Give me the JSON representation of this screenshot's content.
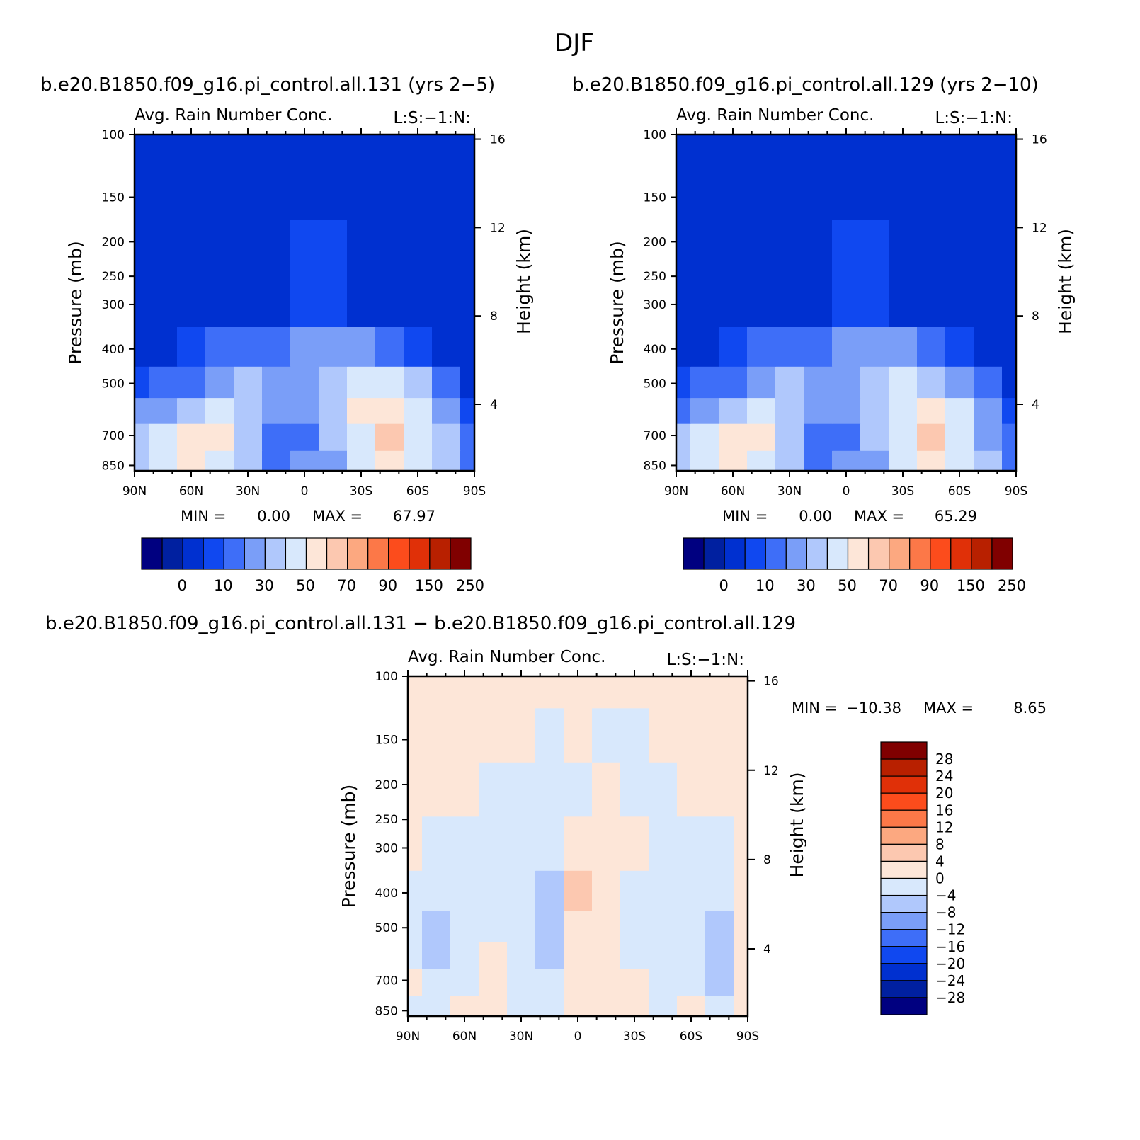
{
  "figure": {
    "title": "DJF",
    "left_case": "b.e20.B1850.f09_g16.pi_control.all.131 (yrs 2−5)",
    "right_case": "b.e20.B1850.f09_g16.pi_control.all.129 (yrs 2−10)",
    "diff_case": "b.e20.B1850.f09_g16.pi_control.all.131 − b.e20.B1850.f09_g16.pi_control.all.129"
  },
  "panel_common": {
    "title": "Avg. Rain Number Conc.",
    "subtitle": "L:S:−1:N:",
    "ylabel": "Pressure (mb)",
    "y2label": "Height (km)",
    "pressure_ticks": [
      "100",
      "150",
      "200",
      "250",
      "300",
      "400",
      "500",
      "700",
      "850"
    ],
    "height_ticks": [
      "16",
      "12",
      "8",
      "4"
    ],
    "lat_ticks": [
      "90N",
      "60N",
      "30N",
      "0",
      "30S",
      "60S",
      "90S"
    ]
  },
  "colors": {
    "field_levels": [
      "#000080",
      "#0020a0",
      "#0030d0",
      "#1048f0",
      "#3e6ef8",
      "#7a9ef8",
      "#b0c8fc",
      "#d8e8fc",
      "#fde6d8",
      "#fcc8b0",
      "#fca880",
      "#fc7848",
      "#fc4c1c",
      "#e03008",
      "#b82000",
      "#800000"
    ],
    "diff_levels": [
      "#000080",
      "#0020a0",
      "#0030d0",
      "#1048f0",
      "#3e6ef8",
      "#7a9ef8",
      "#b0c8fc",
      "#d8e8fc",
      "#fde6d8",
      "#fcc8b0",
      "#fca880",
      "#fc7848",
      "#fc4c1c",
      "#e03008",
      "#b82000",
      "#800000"
    ]
  },
  "colorbar_field": {
    "labels": [
      "0",
      "10",
      "30",
      "50",
      "70",
      "90",
      "150",
      "250"
    ]
  },
  "colorbar_diff": {
    "labels": [
      "28",
      "24",
      "20",
      "16",
      "12",
      "8",
      "4",
      "0",
      "−4",
      "−8",
      "−12",
      "−16",
      "−20",
      "−24",
      "−28"
    ]
  },
  "chart_data": [
    {
      "type": "heatmap",
      "panel": "left",
      "title": "Avg. Rain Number Conc.",
      "ylabel": "Pressure (mb)",
      "y2label": "Height (km)",
      "x": [
        -90,
        -75,
        -60,
        -45,
        -30,
        -15,
        0,
        15,
        30,
        45,
        60,
        75,
        90
      ],
      "y": [
        850,
        700,
        600,
        500,
        400,
        300,
        100
      ],
      "ylim": [
        100,
        880
      ],
      "y_scale": "log",
      "min_label": "MIN =",
      "min_value": "0.00",
      "max_label": "MAX =",
      "max_value": "67.97",
      "z": [
        [
          35,
          40,
          58,
          45,
          30,
          15,
          20,
          25,
          40,
          55,
          40,
          30,
          10
        ],
        [
          38,
          42,
          55,
          52,
          36,
          15,
          18,
          30,
          48,
          62,
          48,
          30,
          12
        ],
        [
          20,
          25,
          38,
          42,
          38,
          20,
          22,
          35,
          50,
          58,
          42,
          22,
          6
        ],
        [
          6,
          10,
          15,
          22,
          30,
          25,
          28,
          34,
          40,
          40,
          30,
          10,
          2
        ],
        [
          0,
          2,
          6,
          10,
          15,
          18,
          22,
          22,
          20,
          16,
          8,
          2,
          0
        ],
        [
          0,
          0,
          0,
          0,
          2,
          4,
          6,
          6,
          4,
          2,
          0,
          0,
          0
        ],
        [
          0,
          0,
          0,
          0,
          0,
          0,
          0,
          0,
          0,
          0,
          0,
          0,
          0
        ]
      ]
    },
    {
      "type": "heatmap",
      "panel": "right",
      "title": "Avg. Rain Number Conc.",
      "ylabel": "Pressure (mb)",
      "y2label": "Height (km)",
      "x": [
        -90,
        -75,
        -60,
        -45,
        -30,
        -15,
        0,
        15,
        30,
        45,
        60,
        75,
        90
      ],
      "y": [
        850,
        700,
        600,
        500,
        400,
        300,
        100
      ],
      "ylim": [
        100,
        880
      ],
      "y_scale": "log",
      "min_label": "MIN =",
      "min_value": "0.00",
      "max_label": "MAX =",
      "max_value": "65.29",
      "z": [
        [
          34,
          40,
          56,
          46,
          32,
          16,
          20,
          26,
          40,
          54,
          40,
          30,
          10
        ],
        [
          36,
          42,
          54,
          50,
          36,
          16,
          18,
          30,
          48,
          60,
          46,
          28,
          12
        ],
        [
          18,
          24,
          36,
          40,
          36,
          20,
          22,
          34,
          48,
          56,
          40,
          22,
          6
        ],
        [
          6,
          10,
          14,
          22,
          30,
          25,
          28,
          34,
          40,
          38,
          28,
          10,
          2
        ],
        [
          0,
          2,
          6,
          10,
          15,
          18,
          22,
          22,
          20,
          16,
          8,
          2,
          0
        ],
        [
          0,
          0,
          0,
          0,
          2,
          4,
          6,
          6,
          4,
          2,
          0,
          0,
          0
        ],
        [
          0,
          0,
          0,
          0,
          0,
          0,
          0,
          0,
          0,
          0,
          0,
          0,
          0
        ]
      ]
    },
    {
      "type": "heatmap",
      "panel": "difference",
      "title": "Avg. Rain Number Conc.",
      "ylabel": "Pressure (mb)",
      "y2label": "Height (km)",
      "x": [
        -90,
        -75,
        -60,
        -45,
        -30,
        -15,
        0,
        15,
        30,
        45,
        60,
        75,
        90
      ],
      "y": [
        850,
        700,
        600,
        500,
        400,
        300,
        200,
        150,
        100
      ],
      "ylim": [
        100,
        880
      ],
      "y_scale": "log",
      "min_label": "MIN =",
      "min_value": "−10.38",
      "max_label": "MAX =",
      "max_value": "8.65",
      "z": [
        [
          -1,
          -1,
          1,
          1,
          -1,
          -1,
          1,
          1,
          1,
          -1,
          1,
          -1,
          1
        ],
        [
          1,
          -2,
          -1,
          2,
          -2,
          -3,
          1,
          1,
          1,
          -3,
          -1,
          -5,
          1
        ],
        [
          -1,
          -5,
          -2,
          1,
          -3,
          -6,
          2,
          1,
          -2,
          -2,
          -4,
          -8,
          1
        ],
        [
          -1,
          -5,
          -2,
          -1,
          -2,
          -6,
          2,
          1,
          -1,
          -2,
          -4,
          -6,
          1
        ],
        [
          -1,
          -2,
          -1,
          -1,
          -2,
          -5,
          5,
          1,
          -1,
          -1,
          -2,
          -2,
          1
        ],
        [
          1,
          -1,
          -1,
          -1,
          -1,
          -1,
          1,
          1,
          1,
          -1,
          -1,
          -1,
          1
        ],
        [
          1,
          1,
          1,
          -1,
          -1,
          -1,
          -1,
          1,
          -1,
          -1,
          1,
          1,
          1
        ],
        [
          1,
          1,
          1,
          1,
          1,
          -1,
          1,
          -1,
          -1,
          1,
          1,
          1,
          1
        ],
        [
          1,
          1,
          1,
          1,
          1,
          1,
          1,
          1,
          1,
          1,
          1,
          1,
          1
        ]
      ]
    }
  ]
}
